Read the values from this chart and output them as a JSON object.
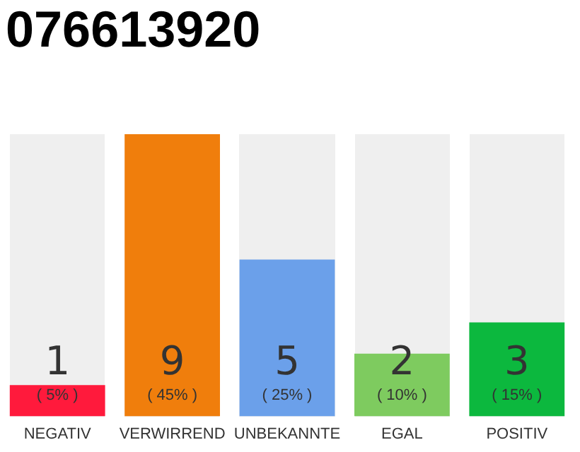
{
  "chart_data": {
    "type": "bar",
    "title": "076613920",
    "categories": [
      "NEGATIV",
      "VERWIRREND",
      "UNBEKANNTE",
      "EGAL",
      "POSITIV"
    ],
    "values": [
      1,
      9,
      5,
      2,
      3
    ],
    "colors": [
      "#ff1a3c",
      "#f07e0c",
      "#6ba0ea",
      "#7ecb5f",
      "#0cb83e"
    ],
    "ylim": [
      0,
      9
    ],
    "tick_labels": "x",
    "grid": false,
    "legend": false,
    "data_labels": true,
    "annotations": [
      "( 5% )",
      "( 45% )",
      "( 25% )",
      "( 10% )",
      "( 15% )"
    ]
  }
}
